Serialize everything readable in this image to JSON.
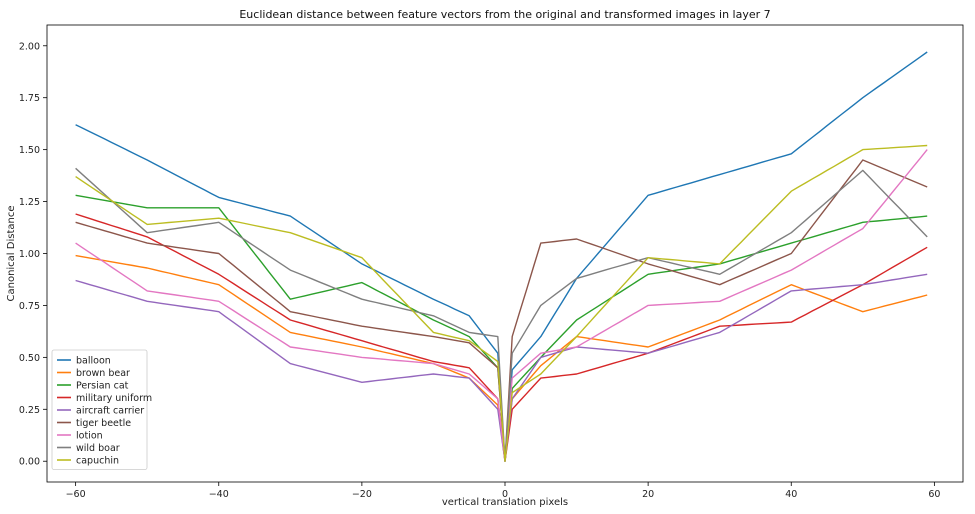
{
  "chart_data": {
    "type": "line",
    "title": "Euclidean distance between feature vectors from the original and transformed images in layer 7",
    "xlabel": "vertical translation pixels",
    "ylabel": "Canonical Distance",
    "xlim": [
      -64,
      64
    ],
    "ylim": [
      -0.1,
      2.1
    ],
    "xticks": [
      -60,
      -40,
      -20,
      0,
      20,
      40,
      60
    ],
    "xtick_labels": [
      "−60",
      "−40",
      "−20",
      "0",
      "20",
      "40",
      "60"
    ],
    "yticks": [
      0,
      0.25,
      0.5,
      0.75,
      1.0,
      1.25,
      1.5,
      1.75,
      2.0
    ],
    "ytick_labels": [
      "0.00",
      "0.25",
      "0.50",
      "0.75",
      "1.00",
      "1.25",
      "1.50",
      "1.75",
      "2.00"
    ],
    "grid": false,
    "legend_position": "lower-left",
    "x_knots": [
      -60,
      -50,
      -40,
      -30,
      -20,
      -10,
      -5,
      -1,
      0,
      1,
      5,
      10,
      20,
      30,
      40,
      50,
      59
    ],
    "series": [
      {
        "name": "balloon",
        "color": "#1f77b4",
        "values": [
          1.62,
          1.45,
          1.27,
          1.18,
          0.95,
          0.78,
          0.7,
          0.52,
          0.0,
          0.44,
          0.6,
          0.88,
          1.28,
          1.38,
          1.48,
          1.75,
          1.97
        ]
      },
      {
        "name": "brown bear",
        "color": "#ff7f0e",
        "values": [
          0.99,
          0.93,
          0.85,
          0.62,
          0.55,
          0.47,
          0.4,
          0.27,
          0.0,
          0.3,
          0.46,
          0.6,
          0.55,
          0.68,
          0.85,
          0.72,
          0.8
        ]
      },
      {
        "name": "Persian cat",
        "color": "#2ca02c",
        "values": [
          1.28,
          1.22,
          1.22,
          0.78,
          0.86,
          0.68,
          0.6,
          0.45,
          0.0,
          0.35,
          0.5,
          0.68,
          0.9,
          0.95,
          1.05,
          1.15,
          1.18
        ]
      },
      {
        "name": "military uniform",
        "color": "#d62728",
        "values": [
          1.19,
          1.08,
          0.9,
          0.68,
          0.58,
          0.48,
          0.45,
          0.3,
          0.0,
          0.25,
          0.4,
          0.42,
          0.52,
          0.65,
          0.67,
          0.85,
          1.03
        ]
      },
      {
        "name": "aircraft carrier",
        "color": "#9467bd",
        "values": [
          0.87,
          0.77,
          0.72,
          0.47,
          0.38,
          0.42,
          0.4,
          0.25,
          0.0,
          0.3,
          0.5,
          0.55,
          0.52,
          0.62,
          0.82,
          0.85,
          0.9
        ]
      },
      {
        "name": "tiger beetle",
        "color": "#8c564b",
        "values": [
          1.15,
          1.05,
          1.0,
          0.72,
          0.65,
          0.6,
          0.57,
          0.45,
          0.0,
          0.6,
          1.05,
          1.07,
          0.95,
          0.85,
          1.0,
          1.45,
          1.32
        ]
      },
      {
        "name": "lotion",
        "color": "#e377c2",
        "values": [
          1.05,
          0.82,
          0.77,
          0.55,
          0.5,
          0.47,
          0.42,
          0.3,
          0.0,
          0.4,
          0.52,
          0.55,
          0.75,
          0.77,
          0.92,
          1.12,
          1.5
        ]
      },
      {
        "name": "wild boar",
        "color": "#7f7f7f",
        "values": [
          1.41,
          1.1,
          1.15,
          0.92,
          0.78,
          0.7,
          0.62,
          0.6,
          0.0,
          0.52,
          0.75,
          0.88,
          0.98,
          0.9,
          1.1,
          1.4,
          1.08
        ]
      },
      {
        "name": "capuchin",
        "color": "#bcbd22",
        "values": [
          1.37,
          1.14,
          1.17,
          1.1,
          0.98,
          0.62,
          0.58,
          0.48,
          0.0,
          0.33,
          0.42,
          0.6,
          0.98,
          0.95,
          1.3,
          1.5,
          1.52
        ]
      }
    ]
  }
}
